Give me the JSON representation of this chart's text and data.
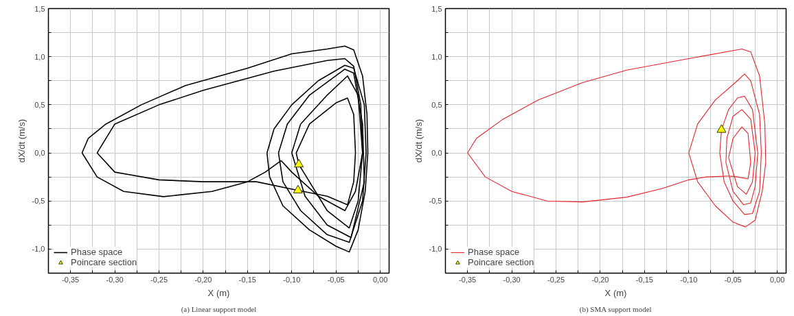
{
  "chart_data": [
    {
      "type": "line",
      "xlabel": "X (m)",
      "ylabel": "dX/dt (m/s)",
      "annotations": [
        "(a) Linear support model"
      ],
      "xlim": [
        -0.375,
        0.01
      ],
      "ylim": [
        -1.25,
        1.5
      ],
      "xticks": [
        {
          "value": -0.35,
          "label": "-0,35"
        },
        {
          "value": -0.325,
          "label": null
        },
        {
          "value": -0.3,
          "label": "-0,30"
        },
        {
          "value": -0.275,
          "label": null
        },
        {
          "value": -0.25,
          "label": "-0,25"
        },
        {
          "value": -0.225,
          "label": null
        },
        {
          "value": -0.2,
          "label": "-0,20"
        },
        {
          "value": -0.175,
          "label": null
        },
        {
          "value": -0.15,
          "label": "-0,15"
        },
        {
          "value": -0.125,
          "label": null
        },
        {
          "value": -0.1,
          "label": "-0,10"
        },
        {
          "value": -0.075,
          "label": null
        },
        {
          "value": -0.05,
          "label": "-0,05"
        },
        {
          "value": -0.025,
          "label": null
        },
        {
          "value": 0.0,
          "label": "0,00"
        }
      ],
      "yticks": [
        {
          "value": -1.25,
          "label": null
        },
        {
          "value": -1.0,
          "label": "-1,0"
        },
        {
          "value": -0.75,
          "label": null
        },
        {
          "value": -0.5,
          "label": "-0,5"
        },
        {
          "value": -0.25,
          "label": null
        },
        {
          "value": 0.0,
          "label": "0,0"
        },
        {
          "value": 0.25,
          "label": null
        },
        {
          "value": 0.5,
          "label": "0,5"
        },
        {
          "value": 0.75,
          "label": null
        },
        {
          "value": 1.0,
          "label": "1,0"
        },
        {
          "value": 1.25,
          "label": null
        },
        {
          "value": 1.5,
          "label": "1,5"
        }
      ],
      "grid": true,
      "legend": "bottom left",
      "series": [
        {
          "name": "Phase space",
          "color": "#000000",
          "marker": "none",
          "x": [
            -0.112,
            -0.13,
            -0.15,
            -0.19,
            -0.245,
            -0.29,
            -0.32,
            -0.337,
            -0.33,
            -0.31,
            -0.27,
            -0.22,
            -0.15,
            -0.1,
            -0.06,
            -0.04,
            -0.03,
            -0.02,
            -0.015,
            -0.014,
            -0.017,
            -0.025,
            -0.035,
            -0.05,
            -0.08,
            -0.11,
            -0.125,
            -0.128,
            -0.12,
            -0.1,
            -0.07,
            -0.04,
            -0.03,
            -0.018,
            -0.016,
            -0.02,
            -0.035,
            -0.06,
            -0.09,
            -0.11,
            -0.115,
            -0.105,
            -0.08,
            -0.04,
            -0.03,
            -0.02,
            -0.018,
            -0.033,
            -0.06,
            -0.085,
            -0.1,
            -0.09,
            -0.06,
            -0.037,
            -0.025,
            -0.02,
            -0.025,
            -0.035,
            -0.06,
            -0.092,
            -0.095,
            -0.08,
            -0.05,
            -0.037,
            -0.03,
            -0.028,
            -0.03,
            -0.037,
            -0.06,
            -0.093,
            -0.14,
            -0.2,
            -0.25,
            -0.3,
            -0.32,
            -0.3,
            -0.25,
            -0.2,
            -0.12,
            -0.06,
            -0.04,
            -0.03,
            -0.022,
            -0.02,
            -0.028,
            -0.04,
            -0.07,
            -0.1,
            -0.112
          ],
          "values": [
            -0.08,
            -0.2,
            -0.3,
            -0.4,
            -0.455,
            -0.4,
            -0.25,
            0.0,
            0.15,
            0.3,
            0.5,
            0.7,
            0.88,
            1.03,
            1.08,
            1.11,
            1.07,
            0.8,
            0.4,
            0.0,
            -0.4,
            -0.8,
            -1.03,
            -0.97,
            -0.8,
            -0.55,
            -0.25,
            0.0,
            0.25,
            0.5,
            0.75,
            0.91,
            0.88,
            0.5,
            0.0,
            -0.5,
            -0.93,
            -0.85,
            -0.6,
            -0.3,
            0.0,
            0.3,
            0.6,
            0.87,
            0.83,
            0.3,
            -0.3,
            -0.88,
            -0.75,
            -0.45,
            0.0,
            0.3,
            0.6,
            0.8,
            0.6,
            0.0,
            -0.5,
            -0.78,
            -0.6,
            -0.12,
            0.0,
            0.3,
            0.52,
            0.57,
            0.4,
            0.0,
            -0.3,
            -0.54,
            -0.45,
            -0.39,
            -0.3,
            -0.3,
            -0.28,
            -0.2,
            0.0,
            0.3,
            0.5,
            0.65,
            0.85,
            0.96,
            0.98,
            0.9,
            0.5,
            0.0,
            -0.4,
            -0.6,
            -0.45,
            -0.2,
            -0.08
          ]
        },
        {
          "name": "Poincare section",
          "type": "scatter",
          "color": "#ffff00",
          "marker": "triangle",
          "x": [
            -0.092,
            -0.093
          ],
          "values": [
            -0.12,
            -0.39
          ]
        }
      ]
    },
    {
      "type": "line",
      "xlabel": "X (m)",
      "ylabel": "dX/dt (m/s)",
      "annotations": [
        "(b) SMA support model"
      ],
      "xlim": [
        -0.375,
        0.01
      ],
      "ylim": [
        -1.25,
        1.5
      ],
      "xticks": [
        {
          "value": -0.35,
          "label": "-0,35"
        },
        {
          "value": -0.325,
          "label": null
        },
        {
          "value": -0.3,
          "label": "-0,30"
        },
        {
          "value": -0.275,
          "label": null
        },
        {
          "value": -0.25,
          "label": "-0,25"
        },
        {
          "value": -0.225,
          "label": null
        },
        {
          "value": -0.2,
          "label": "-0,20"
        },
        {
          "value": -0.175,
          "label": null
        },
        {
          "value": -0.15,
          "label": "-0,15"
        },
        {
          "value": -0.125,
          "label": null
        },
        {
          "value": -0.1,
          "label": "-0,10"
        },
        {
          "value": -0.075,
          "label": null
        },
        {
          "value": -0.05,
          "label": "-0,05"
        },
        {
          "value": -0.025,
          "label": null
        },
        {
          "value": 0.0,
          "label": "0,00"
        }
      ],
      "yticks": [
        {
          "value": -1.25,
          "label": null
        },
        {
          "value": -1.0,
          "label": "-1,0"
        },
        {
          "value": -0.75,
          "label": null
        },
        {
          "value": -0.5,
          "label": "-0,5"
        },
        {
          "value": -0.25,
          "label": null
        },
        {
          "value": 0.0,
          "label": "0,0"
        },
        {
          "value": 0.25,
          "label": null
        },
        {
          "value": 0.5,
          "label": "0,5"
        },
        {
          "value": 0.75,
          "label": null
        },
        {
          "value": 1.0,
          "label": "1,0"
        },
        {
          "value": 1.25,
          "label": null
        },
        {
          "value": 1.5,
          "label": "1,5"
        }
      ],
      "grid": true,
      "legend": "bottom left",
      "series": [
        {
          "name": "Phase space",
          "color": "#e8222a",
          "marker": "none",
          "x": [
            -0.055,
            -0.08,
            -0.1,
            -0.13,
            -0.17,
            -0.22,
            -0.26,
            -0.3,
            -0.33,
            -0.35,
            -0.34,
            -0.31,
            -0.27,
            -0.22,
            -0.17,
            -0.1,
            -0.04,
            -0.03,
            -0.02,
            -0.014,
            -0.013,
            -0.017,
            -0.025,
            -0.036,
            -0.05,
            -0.07,
            -0.09,
            -0.1,
            -0.09,
            -0.07,
            -0.045,
            -0.037,
            -0.03,
            -0.02,
            -0.018,
            -0.02,
            -0.028,
            -0.037,
            -0.05,
            -0.06,
            -0.065,
            -0.063,
            -0.055,
            -0.045,
            -0.037,
            -0.028,
            -0.022,
            -0.025,
            -0.03,
            -0.038,
            -0.05,
            -0.058,
            -0.057,
            -0.05,
            -0.04,
            -0.03,
            -0.025,
            -0.028,
            -0.035,
            -0.045,
            -0.055,
            -0.05,
            -0.04,
            -0.033,
            -0.03,
            -0.033,
            -0.045,
            -0.055
          ],
          "values": [
            -0.24,
            -0.25,
            -0.28,
            -0.37,
            -0.46,
            -0.51,
            -0.5,
            -0.4,
            -0.25,
            0.0,
            0.15,
            0.35,
            0.55,
            0.73,
            0.86,
            0.98,
            1.08,
            1.05,
            0.8,
            0.3,
            -0.1,
            -0.4,
            -0.7,
            -0.77,
            -0.72,
            -0.55,
            -0.3,
            0.0,
            0.3,
            0.55,
            0.75,
            0.82,
            0.75,
            0.4,
            0.0,
            -0.4,
            -0.63,
            -0.64,
            -0.5,
            -0.3,
            0.0,
            0.24,
            0.45,
            0.57,
            0.59,
            0.45,
            0.0,
            -0.35,
            -0.52,
            -0.54,
            -0.4,
            -0.1,
            0.15,
            0.38,
            0.45,
            0.35,
            0.0,
            -0.3,
            -0.43,
            -0.35,
            -0.05,
            0.15,
            0.27,
            0.2,
            -0.1,
            -0.27,
            -0.25,
            -0.24
          ]
        },
        {
          "name": "Poincare section",
          "type": "scatter",
          "color": "#ffff00",
          "marker": "triangle",
          "x": [
            -0.063
          ],
          "values": [
            0.24
          ]
        }
      ]
    }
  ]
}
